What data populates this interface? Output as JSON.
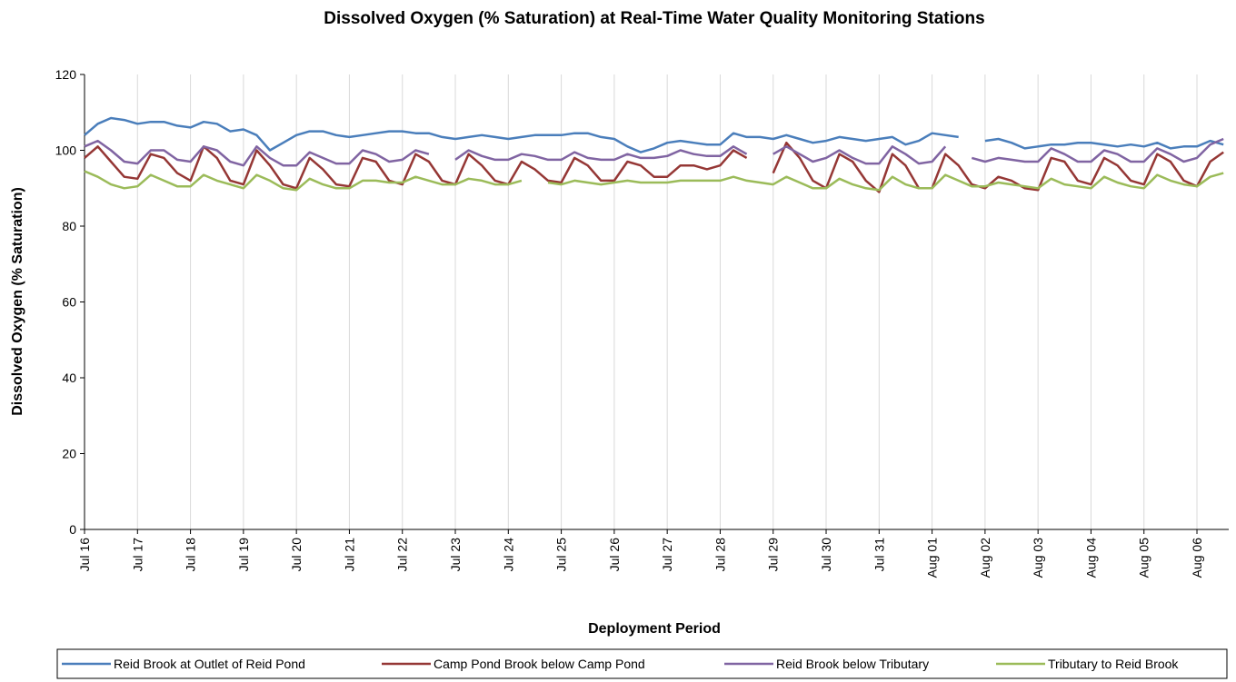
{
  "chart_data": {
    "type": "line",
    "title": "Dissolved Oxygen (% Saturation) at Real-Time Water Quality Monitoring Stations",
    "x_label": "Deployment Period",
    "y_label": "Dissolved  Oxygen (% Saturation)",
    "x": [
      0,
      0.25,
      0.5,
      0.75,
      1,
      1.25,
      1.5,
      1.75,
      2,
      2.25,
      2.5,
      2.75,
      3,
      3.25,
      3.5,
      3.75,
      4,
      4.25,
      4.5,
      4.75,
      5,
      5.25,
      5.5,
      5.75,
      6,
      6.25,
      6.5,
      6.75,
      7,
      7.25,
      7.5,
      7.75,
      8,
      8.25,
      8.5,
      8.75,
      9,
      9.25,
      9.5,
      9.75,
      10,
      10.25,
      10.5,
      10.75,
      11,
      11.25,
      11.5,
      11.75,
      12,
      12.25,
      12.5,
      12.75,
      13,
      13.25,
      13.5,
      13.75,
      14,
      14.25,
      14.5,
      14.75,
      15,
      15.25,
      15.5,
      15.75,
      16,
      16.25,
      16.5,
      16.75,
      17,
      17.25,
      17.5,
      17.75,
      18,
      18.25,
      18.5,
      18.75,
      19,
      19.25,
      19.5,
      19.75,
      20,
      20.25,
      20.5,
      20.75,
      21,
      21.25,
      21.5
    ],
    "xlim": [
      0,
      21.6
    ],
    "xticks": [
      {
        "value": 0,
        "label": "Jul 16"
      },
      {
        "value": 1,
        "label": "Jul 17"
      },
      {
        "value": 2,
        "label": "Jul 18"
      },
      {
        "value": 3,
        "label": "Jul 19"
      },
      {
        "value": 4,
        "label": "Jul 20"
      },
      {
        "value": 5,
        "label": "Jul 21"
      },
      {
        "value": 6,
        "label": "Jul 22"
      },
      {
        "value": 7,
        "label": "Jul 23"
      },
      {
        "value": 8,
        "label": "Jul 24"
      },
      {
        "value": 9,
        "label": "Jul 25"
      },
      {
        "value": 10,
        "label": "Jul 26"
      },
      {
        "value": 11,
        "label": "Jul 27"
      },
      {
        "value": 12,
        "label": "Jul 28"
      },
      {
        "value": 13,
        "label": "Jul 29"
      },
      {
        "value": 14,
        "label": "Jul 30"
      },
      {
        "value": 15,
        "label": "Jul 31"
      },
      {
        "value": 16,
        "label": "Aug 01"
      },
      {
        "value": 17,
        "label": "Aug 02"
      },
      {
        "value": 18,
        "label": "Aug 03"
      },
      {
        "value": 19,
        "label": "Aug 04"
      },
      {
        "value": 20,
        "label": "Aug 05"
      },
      {
        "value": 21,
        "label": "Aug 06"
      }
    ],
    "ylim": [
      0,
      120
    ],
    "yticks": [
      0,
      20,
      40,
      60,
      80,
      100,
      120
    ],
    "grid": "x",
    "legend": "bottom",
    "series": [
      {
        "name": "Reid Brook at Outlet of Reid Pond",
        "color": "#4a7ebb",
        "values": [
          104,
          107,
          108.5,
          108,
          107,
          107.5,
          107.5,
          106.5,
          106,
          107.5,
          107,
          105,
          105.5,
          104,
          100,
          102,
          104,
          105,
          105,
          104,
          103.5,
          104,
          104.5,
          105,
          105,
          104.5,
          104.5,
          103.5,
          103,
          103.5,
          104,
          103.5,
          103,
          103.5,
          104,
          104,
          104,
          104.5,
          104.5,
          103.5,
          103,
          101,
          99.5,
          100.5,
          102,
          102.5,
          102,
          101.5,
          101.5,
          104.5,
          103.5,
          103.5,
          103,
          104,
          103,
          102,
          102.5,
          103.5,
          103,
          102.5,
          103,
          103.5,
          101.5,
          102.5,
          104.5,
          104,
          103.5,
          null,
          102.5,
          103,
          102,
          100.5,
          101,
          101.5,
          101.5,
          102,
          102,
          101.5,
          101,
          101.5,
          101,
          102,
          100.5,
          101,
          101,
          102.5,
          101.5
        ]
      },
      {
        "name": "Camp Pond Brook below Camp Pond",
        "color": "#953735",
        "values": [
          98,
          101,
          97,
          93,
          92.5,
          99,
          98,
          94,
          92,
          101,
          98,
          92,
          91,
          100,
          96,
          91,
          90,
          98,
          95,
          91,
          90.5,
          98,
          97,
          92,
          91,
          99,
          97,
          92,
          91,
          99,
          96,
          92,
          91,
          97,
          95,
          92,
          91.5,
          98,
          96,
          92,
          92,
          97,
          96,
          93,
          93,
          96,
          96,
          95,
          96,
          100,
          98,
          null,
          94,
          102,
          98,
          92,
          90,
          99,
          97,
          92,
          89,
          99,
          96,
          90,
          90,
          99,
          96,
          91,
          90,
          93,
          92,
          90,
          89.5,
          98,
          97,
          92,
          91,
          98,
          96,
          92,
          91,
          99,
          97,
          92,
          90.5,
          97,
          99.5
        ]
      },
      {
        "name": "Reid Brook below Tributary",
        "color": "#8064a2",
        "values": [
          101,
          102.5,
          100,
          97,
          96.5,
          100,
          100,
          97.5,
          97,
          101,
          100,
          97,
          96,
          101,
          98,
          96,
          96,
          99.5,
          98,
          96.5,
          96.5,
          100,
          99,
          97,
          97.5,
          100,
          99,
          null,
          97.5,
          100,
          98.5,
          97.5,
          97.5,
          99,
          98.5,
          97.5,
          97.5,
          99.5,
          98,
          97.5,
          97.5,
          99,
          98,
          98,
          98.5,
          100,
          99,
          98.5,
          98.5,
          101,
          99,
          null,
          99,
          101,
          99,
          97,
          98,
          100,
          98,
          96.5,
          96.5,
          101,
          99,
          96.5,
          97,
          101,
          null,
          98,
          97,
          98,
          97.5,
          97,
          97,
          100.5,
          99,
          97,
          97,
          100,
          99,
          97,
          97,
          100.5,
          99,
          97,
          98,
          101.5,
          103
        ]
      },
      {
        "name": "Tributary to Reid Brook",
        "color": "#9bbb59",
        "values": [
          94.5,
          93,
          91,
          90,
          90.5,
          93.5,
          92,
          90.5,
          90.5,
          93.5,
          92,
          91,
          90,
          93.5,
          92,
          90,
          89.5,
          92.5,
          91,
          90,
          90,
          92,
          92,
          91.5,
          91.5,
          93,
          92,
          91,
          91,
          92.5,
          92,
          91,
          91,
          92,
          null,
          91.5,
          91,
          92,
          91.5,
          91,
          91.5,
          92,
          91.5,
          91.5,
          91.5,
          92,
          92,
          92,
          92,
          93,
          92,
          91.5,
          91,
          93,
          91.5,
          90,
          90,
          92.5,
          91,
          90,
          89.5,
          93,
          91,
          90,
          90,
          93.5,
          92,
          90.5,
          90.5,
          91.5,
          91,
          90.5,
          90,
          92.5,
          91,
          90.5,
          90,
          93,
          91.5,
          90.5,
          90,
          93.5,
          92,
          91,
          90.5,
          93,
          94
        ]
      }
    ]
  }
}
